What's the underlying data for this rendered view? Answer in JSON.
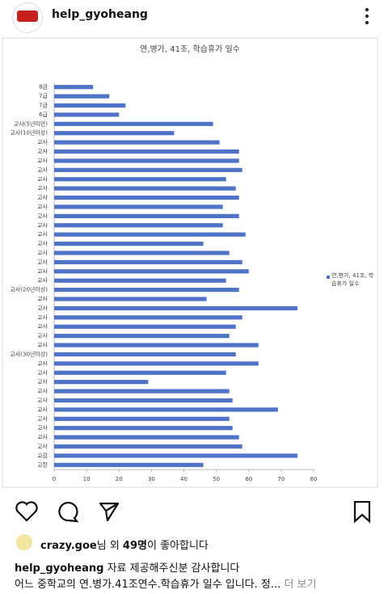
{
  "header": {
    "username": "help_gyoheang"
  },
  "chart_data": {
    "type": "bar",
    "orientation": "horizontal",
    "title": "연,병가, 41조, 학습휴가 일수",
    "categories": [
      "8급",
      "7급",
      "7급",
      "6급",
      "교사(5년미만)",
      "교사(10년이상)",
      "교사",
      "교사",
      "교사",
      "교사",
      "교사",
      "교사",
      "교사",
      "교사",
      "교사",
      "교사",
      "교사",
      "교사",
      "교사",
      "교사",
      "교사",
      "교사",
      "교사(20년이상)",
      "교사",
      "교사",
      "교사",
      "교사",
      "교사",
      "교사",
      "교사(30년이상)",
      "교사",
      "교사",
      "교사",
      "교사",
      "교사",
      "교사",
      "교사",
      "교사",
      "교사",
      "교사",
      "교감",
      "교장"
    ],
    "series": [
      {
        "name": "연,병가, 41조, 학습휴가 일수",
        "color": "#4f73c6",
        "values": [
          12,
          17,
          22,
          20,
          49,
          37,
          51,
          57,
          57,
          58,
          53,
          56,
          57,
          52,
          57,
          52,
          59,
          46,
          54,
          58,
          60,
          53,
          57,
          47,
          75,
          58,
          56,
          54,
          63,
          56,
          63,
          53,
          29,
          54,
          55,
          69,
          54,
          55,
          57,
          58,
          75,
          46
        ]
      }
    ],
    "xlim": [
      0,
      80
    ],
    "xticks": [
      0,
      10,
      20,
      30,
      40,
      50,
      60,
      70,
      80
    ],
    "legend": "right"
  },
  "likes": {
    "user": "crazy.goe",
    "middle": "님 외 ",
    "count": "49명",
    "end": "이 좋아합니다"
  },
  "caption": {
    "user": "help_gyoheang",
    "text": " 자료 제공해주신분 감사합니다",
    "line2": "어느 중학교의 연.병가.41조연수.학습휴가 일수 입니다. 정...",
    "more": " 더 보기"
  }
}
